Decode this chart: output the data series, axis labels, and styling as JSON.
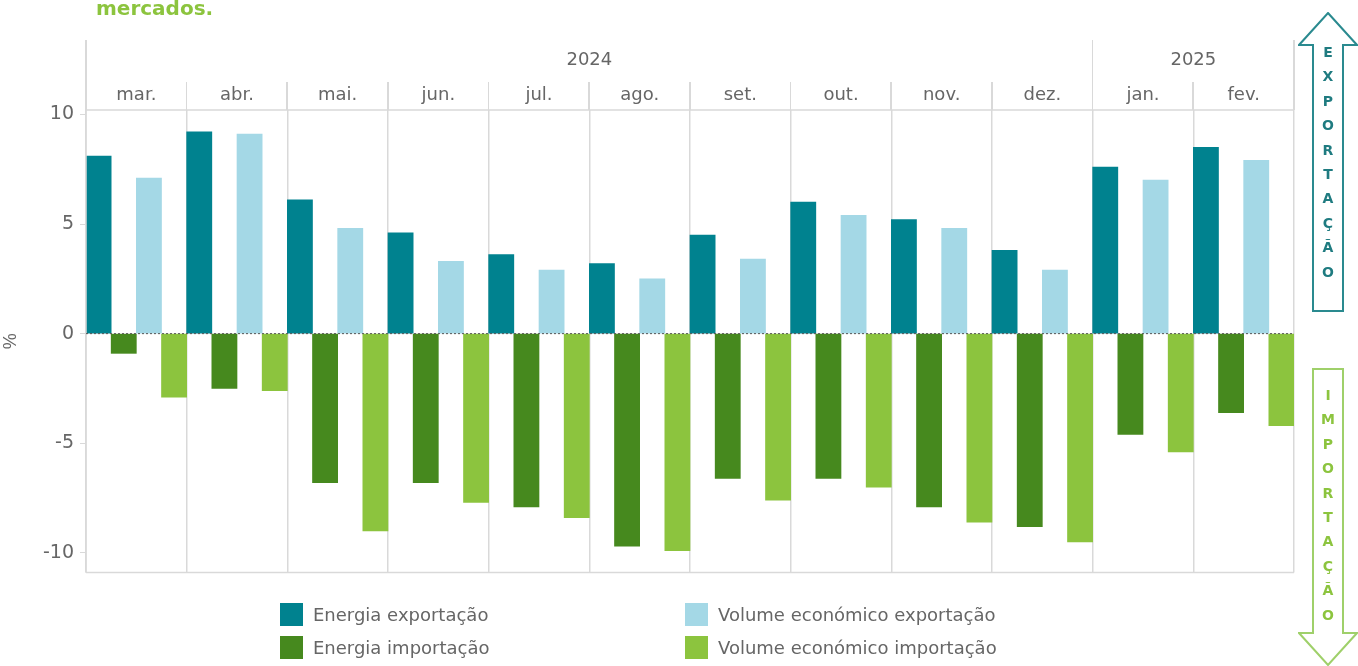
{
  "chart_data": {
    "type": "bar",
    "title": "mercados.",
    "ylabel": "%",
    "categories": [
      "mar.",
      "abr.",
      "mai.",
      "jun.",
      "jul.",
      "ago.",
      "set.",
      "out.",
      "nov.",
      "dez.",
      "jan.",
      "fev."
    ],
    "series": [
      {
        "name": "Energia exportação",
        "color": "#00828f",
        "values": [
          8.1,
          9.2,
          6.1,
          4.6,
          3.6,
          3.2,
          4.5,
          6.0,
          5.2,
          3.8,
          7.6,
          8.5
        ]
      },
      {
        "name": "Energia importação",
        "color": "#46891e",
        "values": [
          -0.9,
          -2.5,
          -6.8,
          -6.8,
          -7.9,
          -9.7,
          -6.6,
          -6.6,
          -7.9,
          -8.8,
          -4.6,
          -3.6
        ]
      },
      {
        "name": "Volume económico exportação",
        "color": "#a4d8e6",
        "values": [
          7.1,
          9.1,
          4.8,
          3.3,
          2.9,
          2.5,
          3.4,
          5.4,
          4.8,
          2.9,
          7.0,
          7.9
        ]
      },
      {
        "name": "Volume económico importação",
        "color": "#8cc43e",
        "values": [
          -2.9,
          -2.6,
          -9.0,
          -7.7,
          -8.4,
          -9.9,
          -7.6,
          -7.0,
          -8.6,
          -9.5,
          -5.4,
          -4.2
        ]
      }
    ],
    "ylim": [
      -10.9,
      10.2
    ],
    "yticks": [
      -10,
      -5,
      0,
      5,
      10
    ],
    "grid": "x",
    "legend": "bottom",
    "ref_lines": [
      {
        "axis": "y",
        "value": 0,
        "color": "#555555",
        "line_style": "dotted"
      }
    ],
    "annotations": [
      "2024",
      "2025",
      "EXPORTAÇÃO",
      "IMPORTAÇÃO"
    ]
  }
}
